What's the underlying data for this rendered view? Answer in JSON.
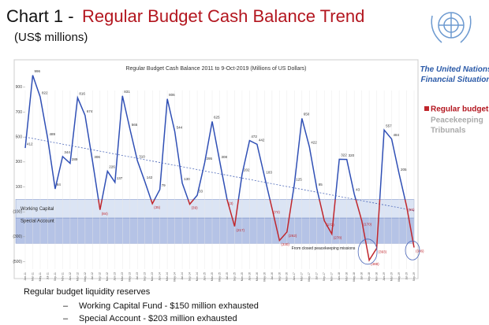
{
  "header": {
    "title_prefix": "Chart 1 -",
    "title": "Regular Budget Cash Balance Trend",
    "subtitle": "(US$ millions)"
  },
  "side": {
    "org_title": "The United Nations Financial Situation",
    "other_legend_entries": [
      "Peacekeeping",
      "Tribunals"
    ]
  },
  "chart_data": {
    "type": "line",
    "title": "Regular Budget Cash Balance 2011 to 9-Oct-2019 (Millions of US Dollars)",
    "categories": [
      "Jan-11",
      "Mar-11",
      "May-11",
      "Jul-11",
      "Sep-11",
      "Nov-11",
      "Jan-12",
      "Mar-12",
      "May-12",
      "Jul-12",
      "Sep-12",
      "Nov-12",
      "Jan-13",
      "Mar-13",
      "May-13",
      "Jul-13",
      "Sep-13",
      "Nov-13",
      "Jan-14",
      "Mar-14",
      "May-14",
      "Jul-14",
      "Sep-14",
      "Nov-14",
      "Jan-15",
      "Mar-15",
      "May-15",
      "Jul-15",
      "Sep-15",
      "Nov-15",
      "Jan-16",
      "Mar-16",
      "May-16",
      "Jul-16",
      "Sep-16",
      "Nov-16",
      "Jan-17",
      "Mar-17",
      "May-17",
      "Jul-17",
      "Sep-17",
      "Nov-17",
      "Jan-18",
      "Mar-18",
      "May-18",
      "Jul-18",
      "Sep-18",
      "Nov-18",
      "Jan-19",
      "Mar-19",
      "May-19",
      "Jul-19",
      "Sep-19"
    ],
    "series": [
      {
        "name": "Regular budget",
        "color": "#2f4fb5",
        "negative_color": "#c0262c",
        "values": [
          412,
          996,
          822,
          489,
          84,
          344,
          289,
          816,
          674,
          306,
          -84,
          226,
          137,
          831,
          565,
          310,
          142,
          -35,
          79,
          806,
          544,
          130,
          -39,
          33,
          295,
          625,
          308,
          -3,
          -217,
          202,
          472,
          442,
          183,
          -72,
          -330,
          -262,
          125,
          650,
          422,
          85,
          -172,
          -278,
          322,
          320,
          43,
          -170,
          -488,
          -393,
          557,
          484,
          205,
          -55,
          -386
        ],
        "value_labels": [
          "412",
          "996",
          "822",
          "489",
          "84",
          "344",
          "289",
          "816",
          "674",
          "306",
          "(84)",
          "226",
          "137",
          "831",
          "565",
          "310",
          "142",
          "(35)",
          "79",
          "806",
          "544",
          "130",
          "(39)",
          "33",
          "295",
          "625",
          "308",
          "(3)",
          "(217)",
          "202",
          "472",
          "442",
          "183",
          "(72)",
          "(330)",
          "(262)",
          "125",
          "650",
          "422",
          "85",
          "(172)",
          "(278)",
          "322",
          "320",
          "43",
          "(170)",
          "(488)",
          "(393)",
          "557",
          "484",
          "205",
          "(55)",
          "(386)"
        ]
      }
    ],
    "trendline": [
      500,
      -90
    ],
    "bands": [
      {
        "label": "Working Capital",
        "values": [
          0,
          -150
        ]
      },
      {
        "label": "Special Account",
        "values": [
          -150,
          -353
        ]
      }
    ],
    "annotation": "From closed peacekeeping missions",
    "ylim": [
      -560,
      1000
    ],
    "yticks": [
      900,
      700,
      500,
      300,
      100,
      {
        "value": -100,
        "label": "(100)"
      },
      {
        "value": -300,
        "label": "(300)"
      },
      {
        "value": -500,
        "label": "(500)"
      }
    ]
  },
  "footer": {
    "heading": "Regular budget liquidity reserves",
    "items": [
      "Working Capital Fund - $150 million exhausted",
      "Special Account - $203 million exhausted"
    ]
  }
}
